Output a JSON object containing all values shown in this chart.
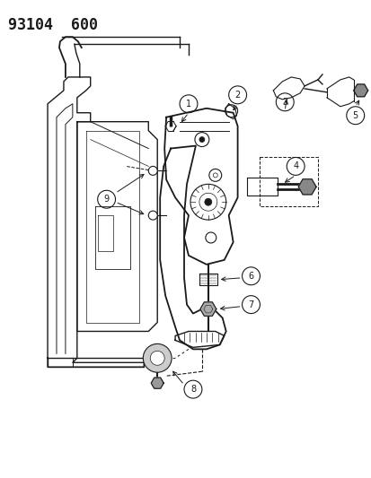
{
  "title_code": "93104  600",
  "bg": "#ffffff",
  "lc": "#1a1a1a",
  "fig_w": 4.14,
  "fig_h": 5.33,
  "dpi": 100
}
